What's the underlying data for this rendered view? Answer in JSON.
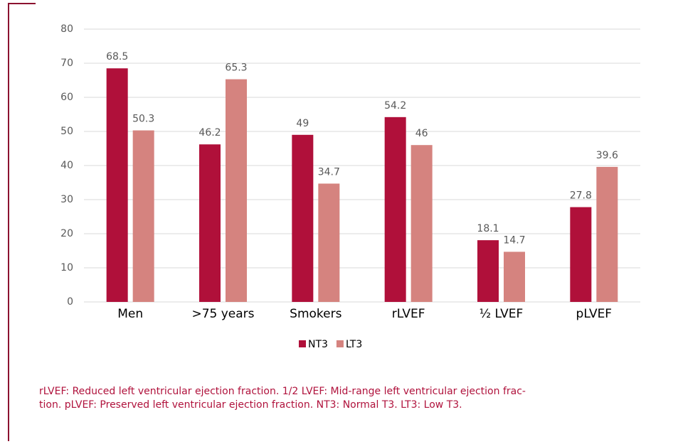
{
  "chart_data": {
    "type": "bar",
    "categories": [
      "Men",
      ">75 years",
      "Smokers",
      "rLVEF",
      "½ LVEF",
      "pLVEF"
    ],
    "series": [
      {
        "name": "NT3",
        "color": "#b0103a",
        "values": [
          68.5,
          46.2,
          49,
          54.2,
          18.1,
          27.8
        ]
      },
      {
        "name": "LT3",
        "color": "#d5837f",
        "values": [
          50.3,
          65.3,
          34.7,
          46,
          14.7,
          39.6
        ]
      }
    ],
    "ylim": [
      0,
      80
    ],
    "yticks": [
      0,
      10,
      20,
      30,
      40,
      50,
      60,
      70,
      80
    ],
    "grid": true,
    "legend": "bottom",
    "footnote": [
      "rLVEF: Reduced left ventricular ejection fraction. 1/2 LVEF: Mid-range left ventricular ejection frac-",
      "tion. pLVEF: Preserved left ventricular ejection fraction. NT3: Normal T3. LT3: Low T3."
    ]
  }
}
